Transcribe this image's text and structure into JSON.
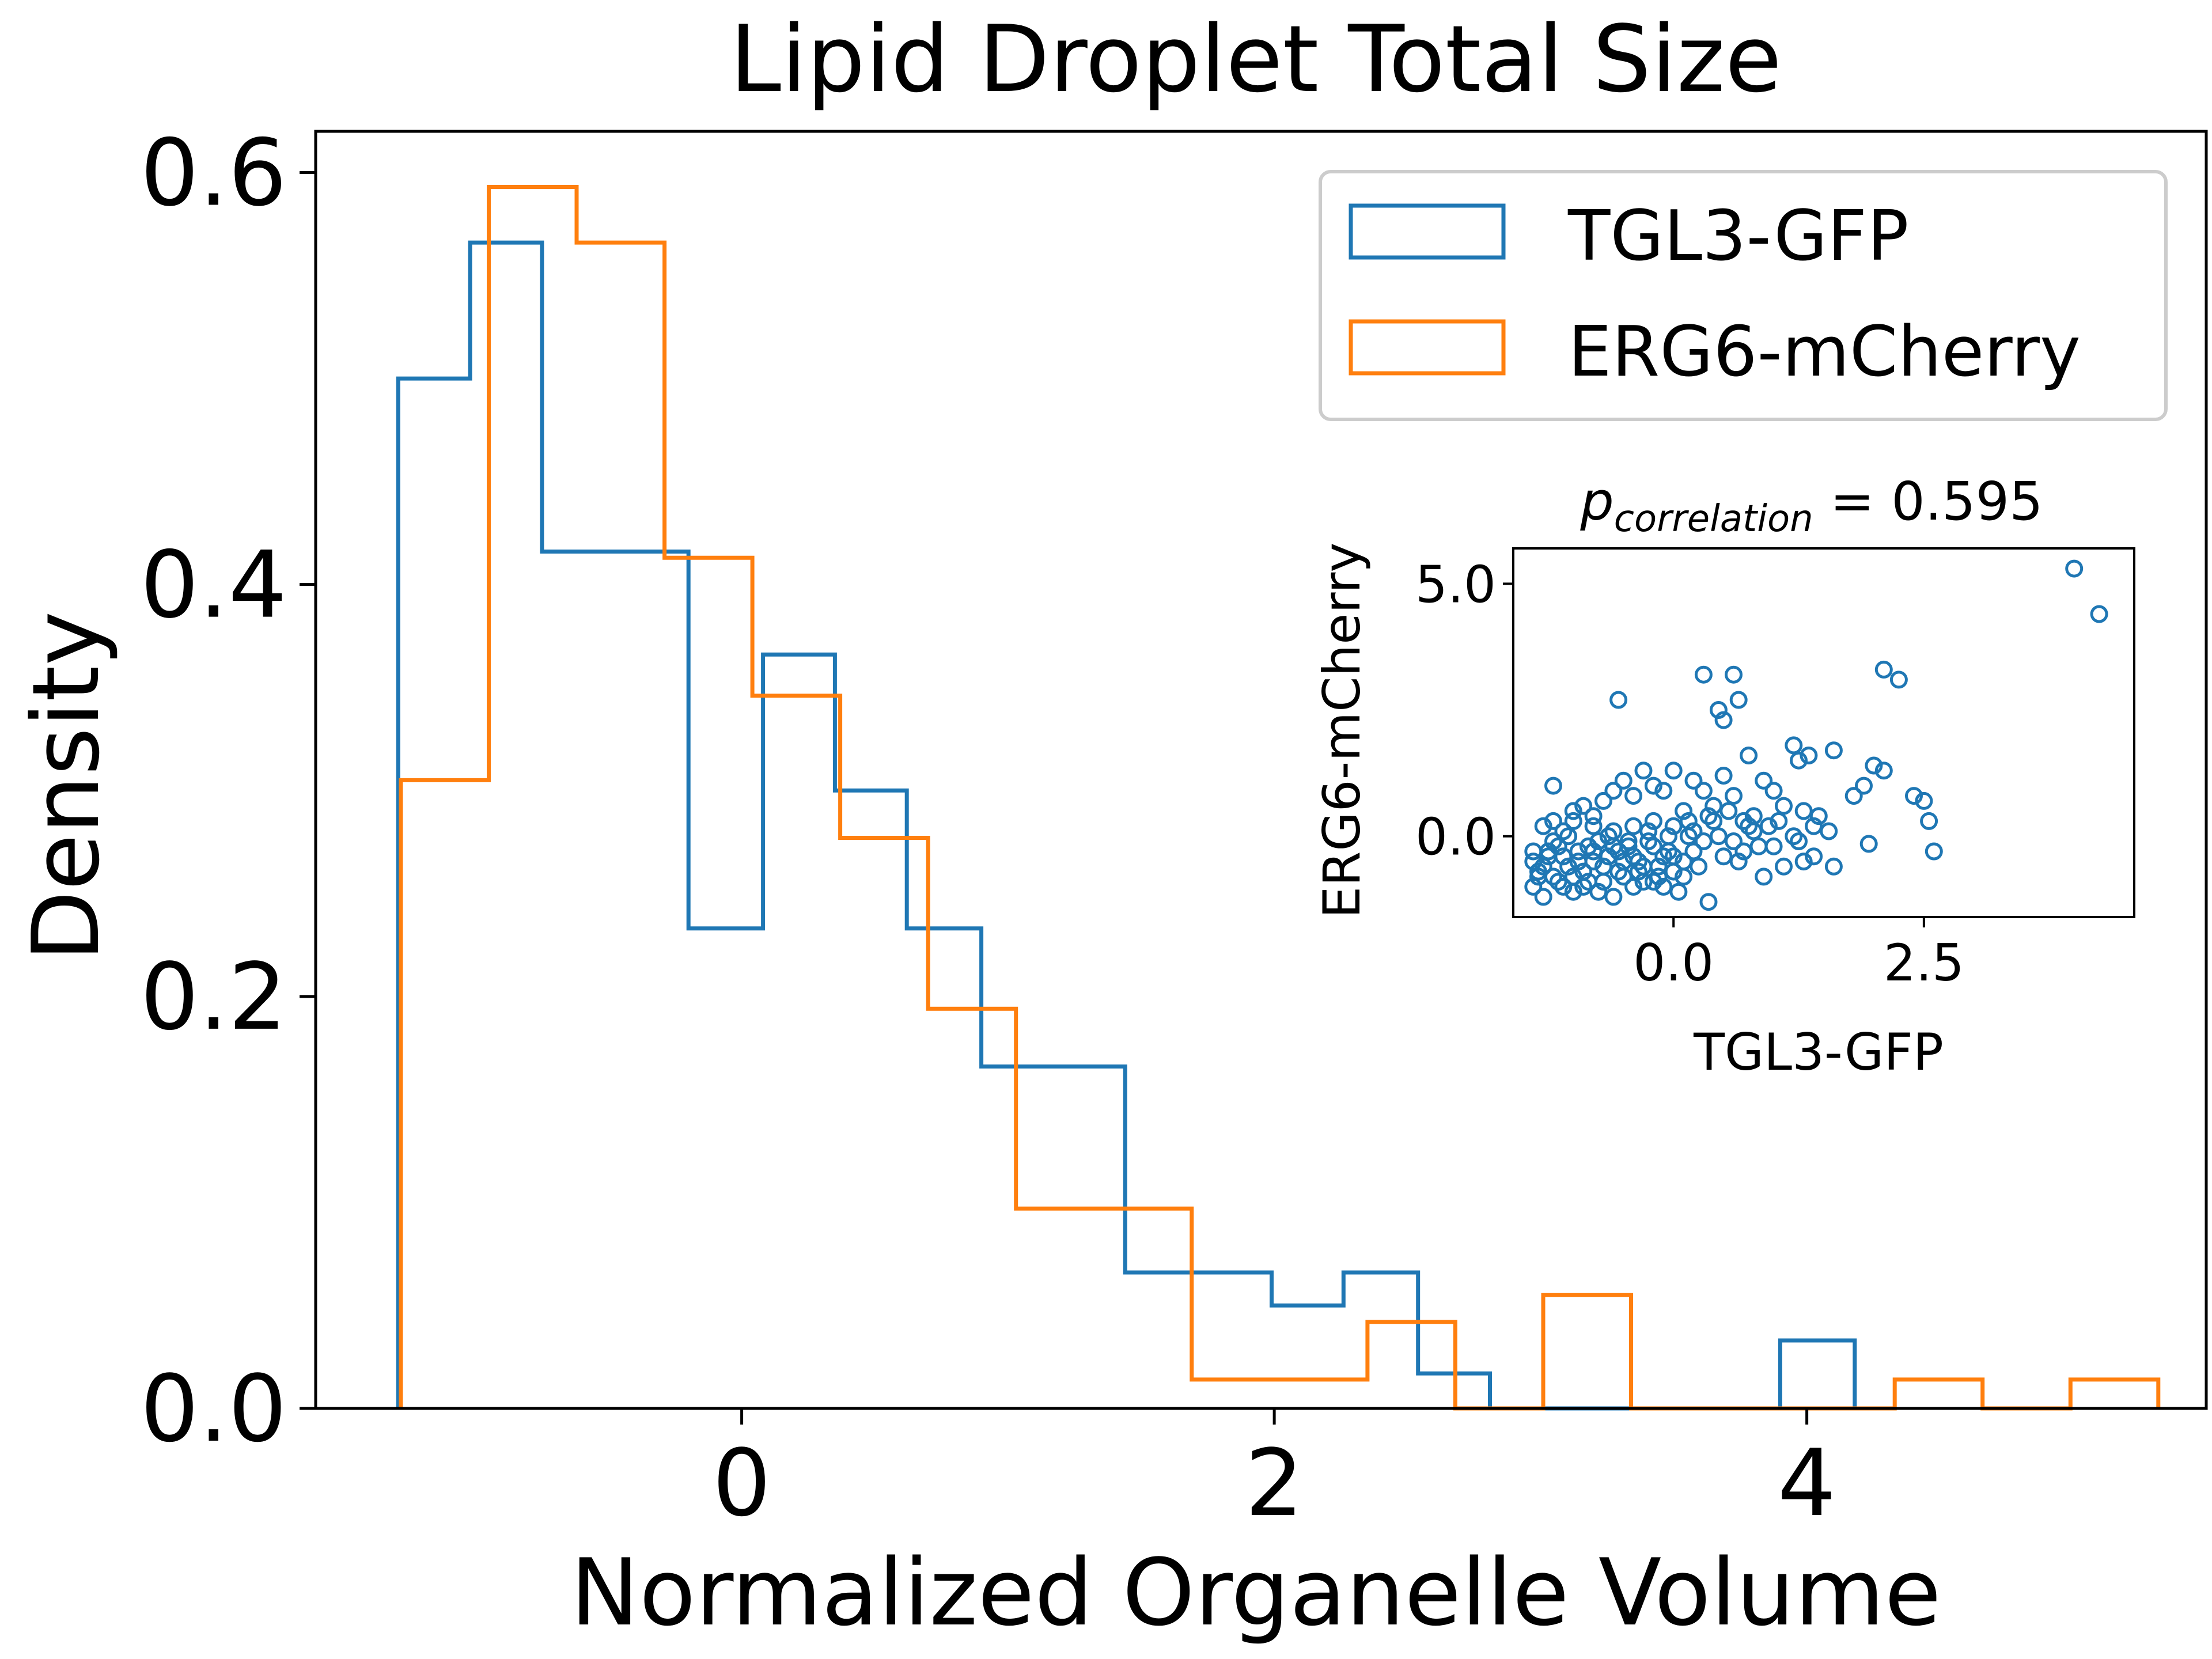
{
  "colors": {
    "tgl3": "#1f77b4",
    "erg6": "#ff7f0e",
    "axis": "#000000",
    "legend_border": "#cccccc"
  },
  "chart_data": [
    {
      "type": "histogram",
      "title": "Lipid Droplet Total Size",
      "xlabel": "Normalized Organelle Volume",
      "ylabel": "Density",
      "xlim": [
        -1.6,
        5.5
      ],
      "ylim": [
        0,
        0.62
      ],
      "x_ticks": [
        0,
        2,
        4
      ],
      "x_tick_labels": [
        "0",
        "2",
        "4"
      ],
      "y_ticks": [
        0.0,
        0.2,
        0.4,
        0.6
      ],
      "y_tick_labels": [
        "0.0",
        "0.2",
        "0.4",
        "0.6"
      ],
      "grid": false,
      "legend_position": "top-right",
      "series": [
        {
          "name": "TGL3-GFP",
          "color": "#1f77b4",
          "bin_edges": [
            -1.29,
            -1.02,
            -0.75,
            -0.47,
            -0.2,
            0.08,
            0.35,
            0.62,
            0.9,
            1.17,
            1.44,
            1.72,
            1.99,
            2.26,
            2.54,
            2.81,
            3.08,
            3.36,
            3.63,
            3.9,
            4.18
          ],
          "densities": [
            0.5,
            0.566,
            0.416,
            0.416,
            0.233,
            0.366,
            0.3,
            0.233,
            0.166,
            0.166,
            0.066,
            0.066,
            0.05,
            0.066,
            0.017,
            0.0,
            0.0,
            0.0,
            0.0,
            0.033
          ]
        },
        {
          "name": "ERG6-mCherry",
          "color": "#ff7f0e",
          "bin_edges": [
            -1.28,
            -0.95,
            -0.62,
            -0.29,
            0.04,
            0.37,
            0.7,
            1.03,
            1.36,
            1.69,
            2.02,
            2.35,
            2.68,
            3.01,
            3.34,
            3.67,
            4.0,
            4.33,
            4.66,
            4.99,
            5.32
          ],
          "densities": [
            0.305,
            0.593,
            0.566,
            0.413,
            0.346,
            0.277,
            0.194,
            0.097,
            0.097,
            0.014,
            0.014,
            0.042,
            0.0,
            0.055,
            0.0,
            0.0,
            0.0,
            0.014,
            0.0,
            0.014
          ]
        }
      ]
    },
    {
      "type": "scatter",
      "title_main": "p",
      "title_sub": "correlation",
      "title_value": " = 0.595",
      "xlabel": "TGL3-GFP",
      "ylabel": "ERG6-mCherry",
      "xlim": [
        -1.6,
        4.6
      ],
      "ylim": [
        -1.6,
        5.7
      ],
      "x_ticks": [
        0.0,
        2.5
      ],
      "x_tick_labels": [
        "0.0",
        "2.5"
      ],
      "y_ticks": [
        0.0,
        5.0
      ],
      "y_tick_labels": [
        "0.0",
        "5.0"
      ],
      "grid": false,
      "marker": "hollow-circle",
      "color": "#1f77b4",
      "points": [
        [
          4.0,
          5.3
        ],
        [
          4.25,
          4.4
        ],
        [
          2.1,
          3.3
        ],
        [
          2.25,
          3.1
        ],
        [
          0.3,
          3.2
        ],
        [
          0.6,
          3.2
        ],
        [
          -0.55,
          2.7
        ],
        [
          0.65,
          2.7
        ],
        [
          0.45,
          2.5
        ],
        [
          0.5,
          2.3
        ],
        [
          1.2,
          1.8
        ],
        [
          1.6,
          1.7
        ],
        [
          0.75,
          1.6
        ],
        [
          1.25,
          1.5
        ],
        [
          1.35,
          1.6
        ],
        [
          2.0,
          1.4
        ],
        [
          2.1,
          1.3
        ],
        [
          2.4,
          0.8
        ],
        [
          2.5,
          0.7
        ],
        [
          2.55,
          0.3
        ],
        [
          2.6,
          -0.3
        ],
        [
          1.9,
          1.0
        ],
        [
          1.8,
          0.8
        ],
        [
          1.95,
          -0.15
        ],
        [
          1.55,
          0.1
        ],
        [
          1.4,
          0.2
        ],
        [
          1.3,
          0.5
        ],
        [
          1.1,
          0.6
        ],
        [
          1.0,
          0.9
        ],
        [
          0.9,
          1.1
        ],
        [
          0.8,
          0.4
        ],
        [
          0.7,
          0.3
        ],
        [
          0.6,
          0.8
        ],
        [
          0.5,
          1.2
        ],
        [
          0.4,
          0.6
        ],
        [
          0.3,
          0.9
        ],
        [
          0.2,
          1.1
        ],
        [
          0.1,
          0.5
        ],
        [
          0.0,
          1.3
        ],
        [
          -0.1,
          0.9
        ],
        [
          -0.2,
          1.0
        ],
        [
          -0.3,
          1.3
        ],
        [
          -0.4,
          0.8
        ],
        [
          -0.5,
          1.1
        ],
        [
          -0.6,
          0.9
        ],
        [
          -0.7,
          0.7
        ],
        [
          -0.8,
          0.4
        ],
        [
          -0.9,
          0.6
        ],
        [
          -1.0,
          0.3
        ],
        [
          -1.1,
          0.1
        ],
        [
          -1.2,
          0.3
        ],
        [
          -1.3,
          0.2
        ],
        [
          -1.2,
          1.0
        ],
        [
          -1.0,
          0.5
        ],
        [
          -0.8,
          0.2
        ],
        [
          -0.6,
          0.1
        ],
        [
          -0.4,
          0.2
        ],
        [
          -0.2,
          0.3
        ],
        [
          0.0,
          0.2
        ],
        [
          0.2,
          0.1
        ],
        [
          0.4,
          0.3
        ],
        [
          0.6,
          -0.1
        ],
        [
          0.8,
          0.1
        ],
        [
          1.0,
          -0.2
        ],
        [
          1.2,
          0.0
        ],
        [
          1.4,
          -0.4
        ],
        [
          1.6,
          -0.6
        ],
        [
          -1.4,
          -0.3
        ],
        [
          -1.3,
          -0.6
        ],
        [
          -1.2,
          -0.8
        ],
        [
          -1.1,
          -1.0
        ],
        [
          -1.0,
          -1.1
        ],
        [
          -0.9,
          -0.7
        ],
        [
          -0.8,
          -0.5
        ],
        [
          -0.7,
          -0.9
        ],
        [
          -0.6,
          -1.2
        ],
        [
          -0.5,
          -0.8
        ],
        [
          -0.4,
          -1.0
        ],
        [
          -0.3,
          -0.6
        ],
        [
          -0.2,
          -0.9
        ],
        [
          -0.1,
          -0.4
        ],
        [
          0.0,
          -0.7
        ],
        [
          0.1,
          -0.5
        ],
        [
          0.2,
          -0.3
        ],
        [
          0.3,
          -0.1
        ],
        [
          0.35,
          -1.3
        ],
        [
          0.5,
          -0.4
        ],
        [
          0.7,
          -0.3
        ],
        [
          0.9,
          -0.8
        ],
        [
          1.1,
          -0.6
        ],
        [
          1.3,
          -0.5
        ],
        [
          -1.4,
          -1.0
        ],
        [
          -1.35,
          -0.8
        ],
        [
          -1.25,
          -0.4
        ],
        [
          -1.15,
          -0.2
        ],
        [
          -1.05,
          -0.6
        ],
        [
          -0.95,
          -0.3
        ],
        [
          -0.85,
          -0.9
        ],
        [
          -0.75,
          -0.1
        ],
        [
          -0.65,
          -0.4
        ],
        [
          -0.55,
          -0.7
        ],
        [
          -0.45,
          -0.2
        ],
        [
          -0.35,
          -0.5
        ],
        [
          -0.25,
          -0.1
        ],
        [
          -0.15,
          -0.8
        ],
        [
          -0.05,
          -0.3
        ],
        [
          0.05,
          -1.1
        ],
        [
          0.15,
          0.0
        ],
        [
          0.25,
          -0.6
        ],
        [
          -1.4,
          -0.5
        ],
        [
          -1.3,
          -1.2
        ],
        [
          -1.2,
          -0.1
        ],
        [
          -1.1,
          -0.4
        ],
        [
          -1.0,
          -0.8
        ],
        [
          -0.9,
          -1.0
        ],
        [
          -0.8,
          -0.3
        ],
        [
          -0.7,
          -0.6
        ],
        [
          -0.6,
          -0.2
        ],
        [
          -0.5,
          -0.5
        ],
        [
          -0.4,
          -0.4
        ],
        [
          -0.3,
          -0.9
        ],
        [
          -0.2,
          -0.2
        ],
        [
          -0.1,
          -1.0
        ],
        [
          0.0,
          -0.4
        ],
        [
          0.1,
          -0.8
        ],
        [
          -1.35,
          -0.7
        ],
        [
          -1.15,
          -0.9
        ],
        [
          -0.95,
          -0.5
        ],
        [
          -0.75,
          -1.1
        ],
        [
          -0.55,
          -0.3
        ],
        [
          -0.35,
          -0.7
        ],
        [
          -0.15,
          -0.6
        ],
        [
          0.45,
          0.0
        ],
        [
          0.65,
          -0.5
        ],
        [
          0.85,
          -0.2
        ],
        [
          1.05,
          0.3
        ],
        [
          1.25,
          -0.1
        ],
        [
          1.45,
          0.4
        ],
        [
          0.95,
          0.2
        ],
        [
          0.55,
          0.5
        ],
        [
          -1.25,
          -0.3
        ],
        [
          -1.05,
          0.0
        ],
        [
          -0.85,
          -0.2
        ],
        [
          -0.65,
          0.0
        ],
        [
          -0.45,
          -0.1
        ],
        [
          -0.25,
          0.1
        ],
        [
          -0.05,
          0.0
        ],
        [
          0.15,
          0.3
        ],
        [
          0.35,
          0.4
        ],
        [
          0.75,
          0.2
        ]
      ]
    }
  ],
  "legend": [
    {
      "label": "TGL3-GFP"
    },
    {
      "label": "ERG6-mCherry"
    }
  ]
}
